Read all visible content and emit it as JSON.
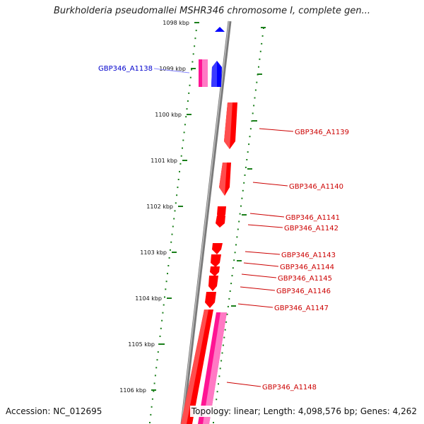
{
  "header": {
    "title": "Burkholderia pseudomallei MSHR346 chromosome I, complete gen..."
  },
  "footer": {
    "accession": "Accession: NC_012695",
    "topology": "Topology: linear; Length: 4,098,576 bp; Genes: 4,262"
  },
  "colors": {
    "forward_gene": "#ff0000",
    "pseudo_gene": "#ff1493",
    "blue_feature": "#0000ff",
    "scale_marks": "#1a7f1a",
    "backbone": "#888888",
    "left_label": "#0000cc",
    "right_label": "#cc0000"
  },
  "scale": {
    "ticks": [
      "1098 kbp",
      "1099 kbp",
      "1100 kbp",
      "1101 kbp",
      "1102 kbp",
      "1103 kbp",
      "1104 kbp",
      "1105 kbp",
      "1106 kbp"
    ]
  },
  "left_labels": [
    "GBP346_A1138"
  ],
  "right_labels": [
    "GBP346_A1139",
    "GBP346_A1140",
    "GBP346_A1141",
    "GBP346_A1142",
    "GBP346_A1143",
    "GBP346_A1144",
    "GBP346_A1145",
    "GBP346_A1146",
    "GBP346_A1147",
    "GBP346_A1148"
  ]
}
